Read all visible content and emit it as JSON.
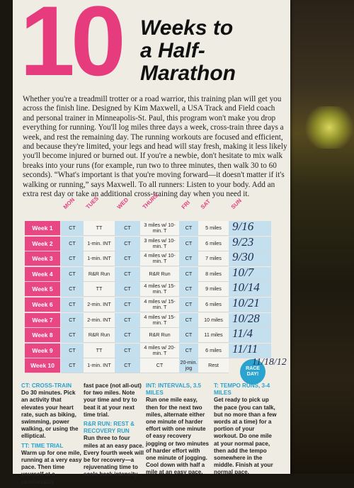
{
  "header": {
    "big_number": "10",
    "title_line1": "Weeks to",
    "title_line2": "a Half-",
    "title_line3": "Marathon"
  },
  "intro": "Whether you're a treadmill trotter or a road warrior, this training plan will get you across the finish line. Designed by Kim Maxwell, a USA Track and Field coach and personal trainer in Minneapolis-St. Paul, this program won't make you drop everything for running. You'll log miles three days a week, cross-train three days a week, and rest the remaining day. The running workouts are focused and efficient, and because they're limited, your legs and head will stay fresh, making it less likely you'll become injured or burned out. If you're a newbie, don't hesitate to mix walk breaks into your runs (for example, run two to three minutes, then walk 30 to 60 seconds). “What's important is that you're moving forward—it doesn't matter if it's walking or running,” says Maxwell. To all runners: Listen to your body. Add an extra rest day or take an additional cross-training day when you need it.",
  "days": [
    "MON",
    "TUES",
    "WED",
    "THURS",
    "FRI",
    "SAT",
    "SUN"
  ],
  "weeks": [
    {
      "label": "Week 1",
      "cells": [
        "CT",
        "TT",
        "CT",
        "3 miles w/ 10-min. T",
        "CT",
        "5 miles"
      ],
      "note": "9/16"
    },
    {
      "label": "Week 2",
      "cells": [
        "CT",
        "1-min. INT",
        "CT",
        "3 miles w/ 10-min. T",
        "CT",
        "6 miles"
      ],
      "note": "9/23"
    },
    {
      "label": "Week 3",
      "cells": [
        "CT",
        "1-min. INT",
        "CT",
        "4 miles w/ 10-min. T",
        "CT",
        "7 miles"
      ],
      "note": "9/30"
    },
    {
      "label": "Week 4",
      "cells": [
        "CT",
        "R&R Run",
        "CT",
        "R&R Run",
        "CT",
        "8 miles"
      ],
      "note": "10/7"
    },
    {
      "label": "Week 5",
      "cells": [
        "CT",
        "TT",
        "CT",
        "4 miles w/ 15-min. T",
        "CT",
        "9 miles"
      ],
      "note": "10/14"
    },
    {
      "label": "Week 6",
      "cells": [
        "CT",
        "2-min. INT",
        "CT",
        "4 miles w/ 15-min. T",
        "CT",
        "6 miles"
      ],
      "note": "10/21"
    },
    {
      "label": "Week 7",
      "cells": [
        "CT",
        "2-min. INT",
        "CT",
        "4 miles w/ 15-min. T",
        "CT",
        "10 miles"
      ],
      "note": "10/28"
    },
    {
      "label": "Week 8",
      "cells": [
        "CT",
        "R&R Run",
        "CT",
        "R&R Run",
        "CT",
        "11 miles"
      ],
      "note": "11/4"
    },
    {
      "label": "Week 9",
      "cells": [
        "CT",
        "TT",
        "CT",
        "4 miles w/ 20-min. T",
        "CT",
        "6 miles"
      ],
      "note": "11/11"
    },
    {
      "label": "Week 10",
      "cells": [
        "CT",
        "1-min. INT",
        "CT",
        "CT",
        "20-min. jog",
        "Rest"
      ],
      "note": "11/18/12"
    }
  ],
  "race_day": "RACE DAY!",
  "legend": {
    "col1": [
      {
        "head": "CT: CROSS-TRAIN",
        "body": "Do 30 minutes. Pick an activity that elevates your heart rate, such as biking, swimming, power walking, or using the elliptical."
      },
      {
        "head": "TT: TIME TRIAL",
        "body": "Warm up for one mile, running at a very easy pace. Then time yourself at a comfortably"
      }
    ],
    "col2": [
      {
        "head": "",
        "body": "fast pace (not all-out) for two miles. Note your time and try to beat it at your next time trial."
      },
      {
        "head": "R&R RUN: REST & RECOVERY RUN",
        "body": "Run three to four miles at an easy pace. Every fourth week will be for recovery—a rejuvenating time to scale back intensity."
      }
    ],
    "col3": [
      {
        "head": "INT: INTERVALS, 3.5 MILES",
        "body": "Run one mile easy, then for the next two miles, alternate either one minute of harder effort with one minute of easy recovery jogging or two minutes of harder effort with one minute of jogging. Cool down with half a mile at an easy pace."
      }
    ],
    "col4": [
      {
        "head": "T: TEMPO RUNS, 3-4 MILES",
        "body": "Get ready to pick up the pace (you can talk, but no more than a few words at a time) for a portion of your workout. Do one mile at your normal pace, then add the tempo somewhere in the middle. Finish at your normal pace."
      }
    ]
  }
}
